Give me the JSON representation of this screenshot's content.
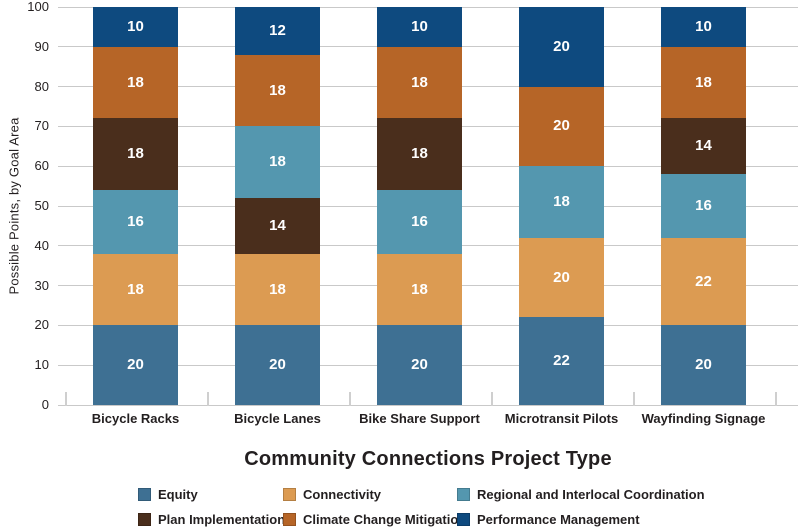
{
  "chart_data": {
    "type": "bar",
    "stacked": true,
    "title": "",
    "xlabel": "Community Connections Project Type",
    "ylabel": "Possible Points, by Goal Area",
    "ylim": [
      0,
      100
    ],
    "yticks": [
      0,
      10,
      20,
      30,
      40,
      50,
      60,
      70,
      80,
      90,
      100
    ],
    "grid": "horizontal",
    "gridline_color": "#C9C9C9",
    "legend_position": "bottom",
    "text_color": "#231F20",
    "value_label_color": "#FFFFFF",
    "categories": [
      "Bicycle Racks",
      "Bicycle Lanes",
      "Bike Share Support",
      "Microtransit Pilots",
      "Wayfinding Signage"
    ],
    "legend_items": [
      {
        "name": "Equity",
        "color": "#3E7093"
      },
      {
        "name": "Connectivity",
        "color": "#DC9B52"
      },
      {
        "name": "Regional and Interlocal Coordination",
        "color": "#5497AF"
      },
      {
        "name": "Plan Implementation",
        "color": "#4A2E1C"
      },
      {
        "name": "Climate Change Mitigation",
        "color": "#B66527"
      },
      {
        "name": "Performance Management",
        "color": "#0E4A7F"
      }
    ],
    "bars": [
      {
        "category": "Bicycle Racks",
        "segments_bottom_to_top": [
          {
            "series": "Equity",
            "value": 20
          },
          {
            "series": "Connectivity",
            "value": 18
          },
          {
            "series": "Regional and Interlocal Coordination",
            "value": 16
          },
          {
            "series": "Plan Implementation",
            "value": 18
          },
          {
            "series": "Climate Change Mitigation",
            "value": 18
          },
          {
            "series": "Performance Management",
            "value": 10
          }
        ]
      },
      {
        "category": "Bicycle Lanes",
        "segments_bottom_to_top": [
          {
            "series": "Equity",
            "value": 20
          },
          {
            "series": "Connectivity",
            "value": 18
          },
          {
            "series": "Plan Implementation",
            "value": 14
          },
          {
            "series": "Regional and Interlocal Coordination",
            "value": 18
          },
          {
            "series": "Climate Change Mitigation",
            "value": 18
          },
          {
            "series": "Performance Management",
            "value": 12
          }
        ]
      },
      {
        "category": "Bike Share Support",
        "segments_bottom_to_top": [
          {
            "series": "Equity",
            "value": 20
          },
          {
            "series": "Connectivity",
            "value": 18
          },
          {
            "series": "Regional and Interlocal Coordination",
            "value": 16
          },
          {
            "series": "Plan Implementation",
            "value": 18
          },
          {
            "series": "Climate Change Mitigation",
            "value": 18
          },
          {
            "series": "Performance Management",
            "value": 10
          }
        ]
      },
      {
        "category": "Microtransit Pilots",
        "segments_bottom_to_top": [
          {
            "series": "Equity",
            "value": 22
          },
          {
            "series": "Connectivity",
            "value": 20
          },
          {
            "series": "Regional and Interlocal Coordination",
            "value": 18
          },
          {
            "series": "Climate Change Mitigation",
            "value": 20
          },
          {
            "series": "Performance Management",
            "value": 20
          }
        ]
      },
      {
        "category": "Wayfinding Signage",
        "segments_bottom_to_top": [
          {
            "series": "Equity",
            "value": 20
          },
          {
            "series": "Connectivity",
            "value": 22
          },
          {
            "series": "Regional and Interlocal Coordination",
            "value": 16
          },
          {
            "series": "Plan Implementation",
            "value": 14
          },
          {
            "series": "Climate Change Mitigation",
            "value": 18
          },
          {
            "series": "Performance Management",
            "value": 10
          }
        ]
      }
    ]
  }
}
